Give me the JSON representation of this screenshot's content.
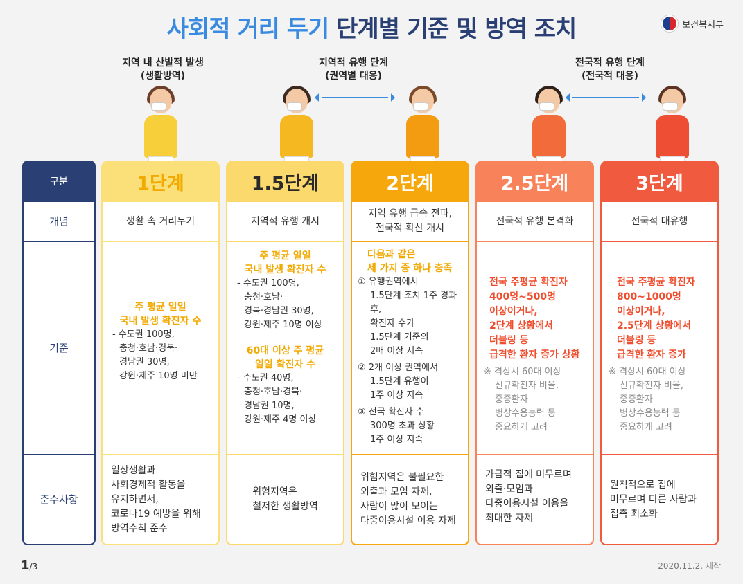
{
  "title": {
    "part1": "사회적 거리 두기",
    "part2": "단계별 기준 및 방역 조치"
  },
  "logo": {
    "text": "보건복지부"
  },
  "stages": {
    "local": [
      "지역 내 산발적 발생",
      "(생활방역)"
    ],
    "regional": [
      "지역적 유행 단계",
      "(권역별 대응)"
    ],
    "national": [
      "전국적 유행 단계",
      "(전국적 대응)"
    ]
  },
  "labels": {
    "header": "구분",
    "concept": "개념",
    "criteria": "기준",
    "rules": "준수사항"
  },
  "levels": [
    {
      "name": "1단계",
      "concept": "생활 속 거리두기",
      "criteria_title": [
        "주 평균 일일",
        "국내 발생 확진자 수"
      ],
      "criteria_lines": [
        "- 수도권 100명,",
        "충청·호남·경북·",
        "경남권 30명,",
        "강원·제주 10명 미만"
      ],
      "rules": [
        "일상생활과",
        "사회경제적 활동을",
        "유지하면서,",
        "코로나19 예방을 위해",
        "방역수칙 준수"
      ]
    },
    {
      "name": "1.5단계",
      "concept": "지역적 유행 개시",
      "criteria_title": [
        "주 평균 일일",
        "국내 발생 확진자 수"
      ],
      "criteria_lines": [
        "- 수도권 100명,",
        "충청·호남·",
        "경북·경남권 30명,",
        "강원·제주 10명 이상"
      ],
      "criteria_title2": [
        "60대 이상 주 평균",
        "일일 확진자 수"
      ],
      "criteria_lines2": [
        "- 수도권 40명,",
        "충청·호남·경북·",
        "경남권 10명,",
        "강원·제주 4명 이상"
      ],
      "rules": [
        "위험지역은",
        "철저한 생활방역"
      ]
    },
    {
      "name": "2단계",
      "concept": [
        "지역 유행 급속 전파,",
        "전국적 확산 개시"
      ],
      "criteria_title": [
        "다음과 같은",
        "세 가지 중 하나 충족"
      ],
      "criteria_items": [
        [
          "① 유행권역에서",
          "1.5단계 조치 1주 경과 후,",
          "확진자 수가",
          "1.5단계 기준의",
          "2배 이상 지속"
        ],
        [
          "② 2개 이상 권역에서",
          "1.5단계 유행이",
          "1주 이상 지속"
        ],
        [
          "③ 전국 확진자 수",
          "300명 초과 상황",
          "1주 이상 지속"
        ]
      ],
      "rules": [
        "위험지역은 불필요한",
        "외출과 모임 자제,",
        "사람이 많이 모이는",
        "다중이용시설 이용 자제"
      ]
    },
    {
      "name": "2.5단계",
      "concept": "전국적 유행 본격화",
      "criteria_title": [
        "전국 주평균 확진자",
        "400명~500명",
        "이상이거나,",
        "2단계 상황에서",
        "더블링 등",
        "급격한 환자 증가 상황"
      ],
      "criteria_note": [
        "※ 격상시 60대 이상",
        "신규확진자 비율,",
        "중증환자",
        "병상수용능력 등",
        "중요하게 고려"
      ],
      "rules": [
        "가급적 집에 머무르며",
        "외출·모임과",
        "다중이용시설 이용을",
        "최대한 자제"
      ]
    },
    {
      "name": "3단계",
      "concept": "전국적 대유행",
      "criteria_title": [
        "전국 주평균 확진자",
        "800~1000명",
        "이상이거나,",
        "2.5단계 상황에서",
        "더블링 등",
        "급격한 환자 증가"
      ],
      "criteria_note": [
        "※ 격상시 60대 이상",
        "신규확진자 비율,",
        "중증환자",
        "병상수용능력 등",
        "중요하게 고려"
      ],
      "rules": [
        "원칙적으로 집에",
        "머무르며 다른 사람과",
        "접촉 최소화"
      ]
    }
  ],
  "footer": {
    "page": "1",
    "total": "/3",
    "date": "2020.11.2. 제작"
  },
  "colors": {
    "navy": "#2a3f73",
    "blue": "#3a8be0",
    "yellow": "#fbe07a",
    "orange": "#f6a70b",
    "coral": "#f8825a",
    "red": "#f05a3f"
  }
}
